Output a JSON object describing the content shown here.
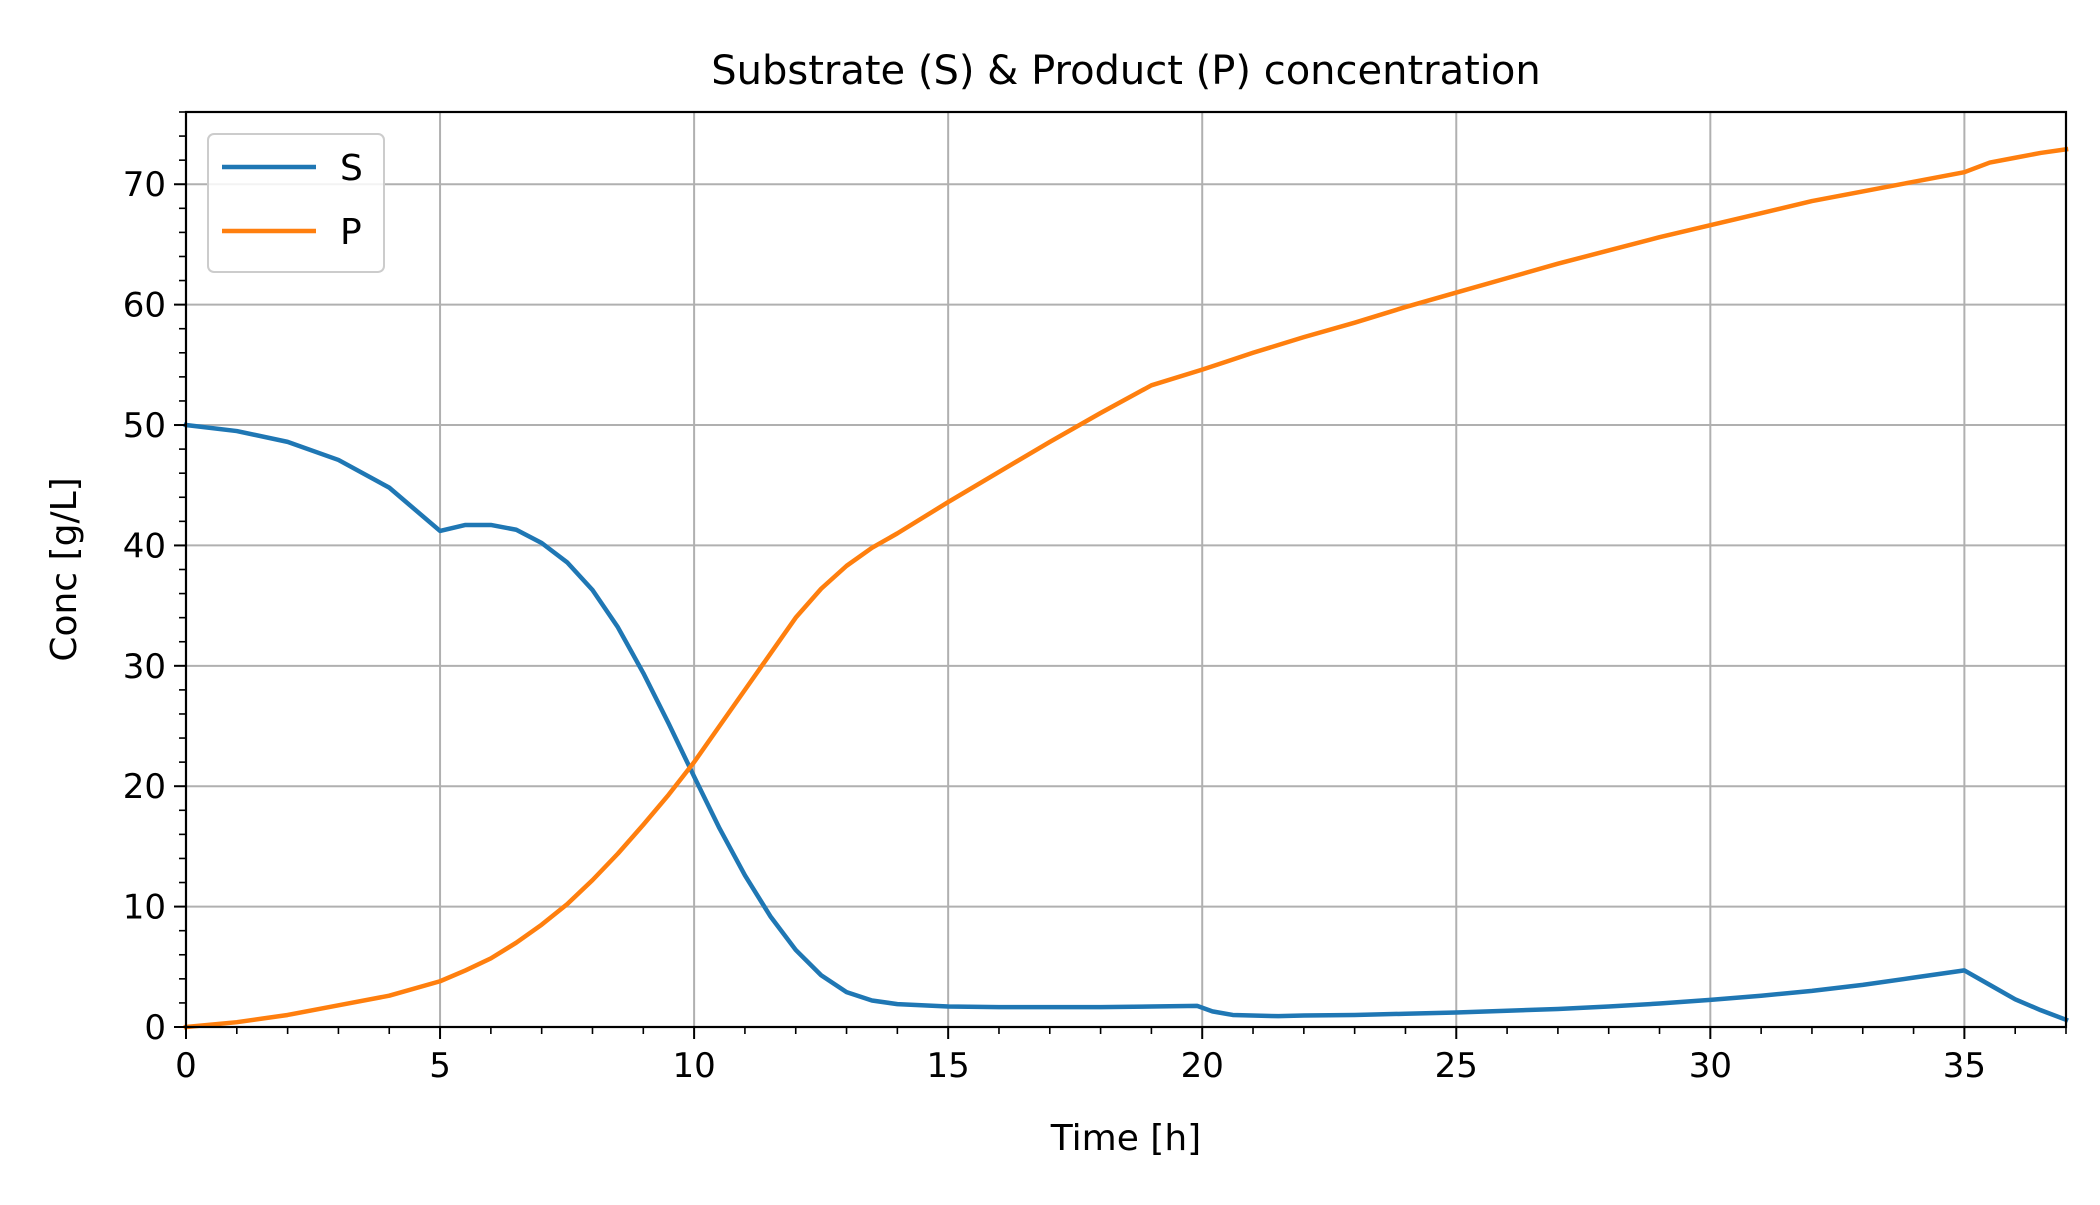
{
  "chart_data": {
    "type": "line",
    "title": "Substrate (S) & Product (P) concentration",
    "xlabel": "Time [h]",
    "ylabel": "Conc [g/L]",
    "xlim": [
      0,
      37
    ],
    "ylim": [
      0,
      76
    ],
    "xticks": [
      0,
      5,
      10,
      15,
      20,
      25,
      30,
      35
    ],
    "yticks": [
      0,
      10,
      20,
      30,
      40,
      50,
      60,
      70
    ],
    "x_minor_step": 1,
    "y_minor_step": 2,
    "grid": true,
    "legend_position": "upper-left",
    "series": [
      {
        "name": "S",
        "color": "#1f77b4",
        "x": [
          0,
          1,
          2,
          3,
          4,
          5,
          5.5,
          6,
          6.5,
          7,
          7.5,
          8,
          8.5,
          9,
          9.5,
          10,
          10.5,
          11,
          11.5,
          12,
          12.5,
          13,
          13.5,
          14,
          15,
          16,
          17,
          18,
          19,
          19.9,
          20.2,
          20.6,
          21.5,
          22,
          23,
          24,
          25,
          26,
          27,
          28,
          29,
          30,
          31,
          32,
          33,
          34,
          35,
          35.5,
          36,
          36.5,
          37
        ],
        "y": [
          50,
          49.5,
          48.6,
          47.1,
          44.8,
          41.2,
          41.7,
          41.7,
          41.3,
          40.2,
          38.6,
          36.3,
          33.2,
          29.4,
          25.2,
          20.8,
          16.5,
          12.6,
          9.2,
          6.4,
          4.3,
          2.9,
          2.2,
          1.9,
          1.7,
          1.65,
          1.65,
          1.65,
          1.7,
          1.75,
          1.3,
          1.0,
          0.9,
          0.95,
          1.0,
          1.1,
          1.2,
          1.35,
          1.5,
          1.7,
          1.95,
          2.25,
          2.6,
          3.0,
          3.5,
          4.1,
          4.7,
          3.5,
          2.3,
          1.4,
          0.6
        ]
      },
      {
        "name": "P",
        "color": "#ff7f0e",
        "x": [
          0,
          1,
          2,
          3,
          4,
          5,
          5.5,
          6,
          6.5,
          7,
          7.5,
          8,
          8.5,
          9,
          9.5,
          10,
          10.5,
          11,
          11.5,
          12,
          12.5,
          13,
          13.5,
          14,
          15,
          16,
          17,
          18,
          19,
          20,
          20.5,
          21,
          22,
          23,
          24,
          25,
          26,
          27,
          28,
          29,
          30,
          31,
          32,
          33,
          34,
          35,
          35.5,
          36,
          36.5,
          37
        ],
        "y": [
          0,
          0.4,
          1.0,
          1.8,
          2.6,
          3.8,
          4.7,
          5.7,
          7.0,
          8.5,
          10.2,
          12.2,
          14.4,
          16.8,
          19.3,
          22.0,
          25.0,
          28.0,
          31.0,
          34.0,
          36.4,
          38.3,
          39.8,
          41.0,
          43.6,
          46.1,
          48.6,
          51.0,
          53.3,
          54.6,
          55.3,
          56.0,
          57.3,
          58.5,
          59.8,
          61.0,
          62.2,
          63.4,
          64.5,
          65.6,
          66.6,
          67.6,
          68.6,
          69.4,
          70.2,
          71.0,
          71.8,
          72.2,
          72.6,
          72.9
        ]
      }
    ]
  }
}
